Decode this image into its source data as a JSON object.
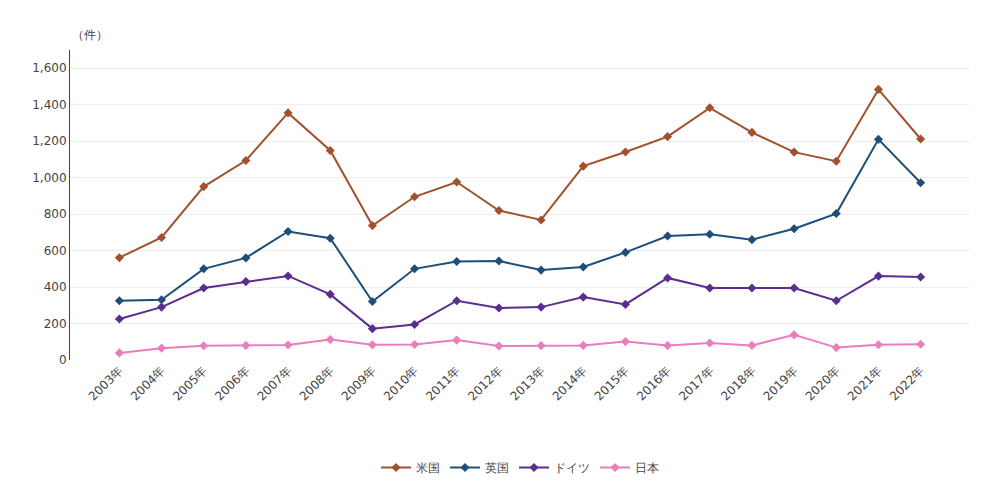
{
  "chart_data": {
    "type": "line",
    "ylabel": "（件）",
    "categories": [
      "2003年",
      "2004年",
      "2005年",
      "2006年",
      "2007年",
      "2008年",
      "2009年",
      "2010年",
      "2011年",
      "2012年",
      "2013年",
      "2014年",
      "2015年",
      "2016年",
      "2017年",
      "2018年",
      "2019年",
      "2020年",
      "2021年",
      "2022年"
    ],
    "series": [
      {
        "name": "米国",
        "color": "#A0522D",
        "values": [
          561,
          672,
          951,
          1094,
          1355,
          1149,
          737,
          895,
          976,
          820,
          768,
          1063,
          1141,
          1225,
          1383,
          1248,
          1140,
          1090,
          1484,
          1212
        ]
      },
      {
        "name": "英国",
        "color": "#1F4E79",
        "values": [
          325,
          330,
          500,
          560,
          705,
          668,
          321,
          500,
          540,
          543,
          493,
          510,
          590,
          680,
          690,
          660,
          720,
          803,
          1210,
          972
        ]
      },
      {
        "name": "ドイツ",
        "color": "#5B2D8E",
        "values": [
          225,
          290,
          395,
          430,
          461,
          360,
          172,
          195,
          325,
          285,
          290,
          345,
          305,
          450,
          395,
          395,
          395,
          325,
          460,
          455
        ]
      },
      {
        "name": "日本",
        "color": "#E87EBE",
        "values": [
          39,
          65,
          78,
          80,
          82,
          112,
          84,
          85,
          109,
          77,
          79,
          80,
          101,
          79,
          93,
          80,
          138,
          68,
          84,
          86
        ]
      }
    ],
    "ylim": [
      0,
      1700
    ],
    "yticks": [
      0,
      200,
      400,
      600,
      800,
      {
        "value": 1000,
        "label": "1,000"
      },
      {
        "value": 1200,
        "label": "1,200"
      },
      {
        "value": 1400,
        "label": "1,400"
      },
      {
        "value": 1600,
        "label": "1,600"
      }
    ],
    "grid": true,
    "legend": "bottom",
    "marker": "diamond"
  }
}
